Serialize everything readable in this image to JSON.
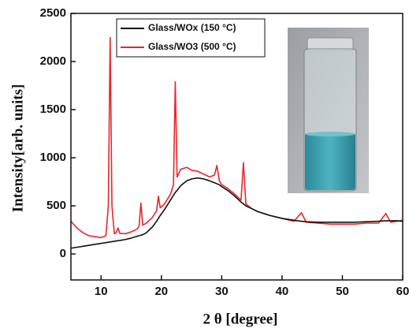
{
  "chart_data": {
    "type": "line",
    "x_label": "2 θ [degree]",
    "y_label": "Intensity[arb. units]",
    "x": [
      5,
      6,
      7,
      8,
      9,
      10,
      10.8,
      11.2,
      11.5,
      11.8,
      12.2,
      12.5,
      12.8,
      13.1,
      14,
      15,
      16,
      16.3,
      16.6,
      16.9,
      17.5,
      18.5,
      19.2,
      19.5,
      19.8,
      20.5,
      21.5,
      22,
      22.3,
      22.6,
      23.2,
      24.2,
      25,
      26,
      27,
      28,
      28.8,
      29.2,
      29.6,
      30,
      31,
      32,
      33.2,
      33.6,
      34,
      35,
      36,
      38,
      40,
      42,
      43.2,
      44,
      46,
      48,
      50,
      52,
      54,
      56,
      57.2,
      58,
      59,
      60
    ],
    "series": [
      {
        "name": "Glass/WOx (150 °C)",
        "color": "#111111",
        "values": [
          60,
          70,
          80,
          90,
          100,
          110,
          118,
          122,
          125,
          128,
          132,
          135,
          138,
          140,
          150,
          165,
          185,
          190,
          195,
          200,
          220,
          280,
          340,
          370,
          400,
          460,
          560,
          610,
          640,
          660,
          710,
          760,
          780,
          790,
          780,
          760,
          740,
          730,
          720,
          700,
          660,
          610,
          540,
          520,
          500,
          470,
          440,
          400,
          370,
          350,
          340,
          335,
          330,
          330,
          330,
          330,
          335,
          340,
          345,
          345,
          345,
          340
        ]
      },
      {
        "name": "Glass/WO3 (500 °C)",
        "color": "#e8262b",
        "values": [
          340,
          270,
          220,
          190,
          180,
          170,
          190,
          500,
          2250,
          500,
          210,
          220,
          270,
          215,
          210,
          230,
          260,
          290,
          530,
          300,
          320,
          380,
          450,
          600,
          480,
          520,
          620,
          720,
          1790,
          800,
          880,
          900,
          870,
          860,
          830,
          800,
          820,
          920,
          760,
          720,
          680,
          630,
          560,
          950,
          520,
          470,
          440,
          400,
          370,
          340,
          430,
          330,
          320,
          310,
          310,
          310,
          320,
          320,
          420,
          330,
          340,
          350
        ]
      }
    ],
    "xlim": [
      5,
      60
    ],
    "xticks": [
      10,
      20,
      30,
      40,
      50,
      60
    ],
    "ylim": [
      -270,
      2500
    ],
    "yticks": [
      0,
      500,
      1000,
      1500,
      2000,
      2500
    ],
    "legend": "upper-left"
  }
}
